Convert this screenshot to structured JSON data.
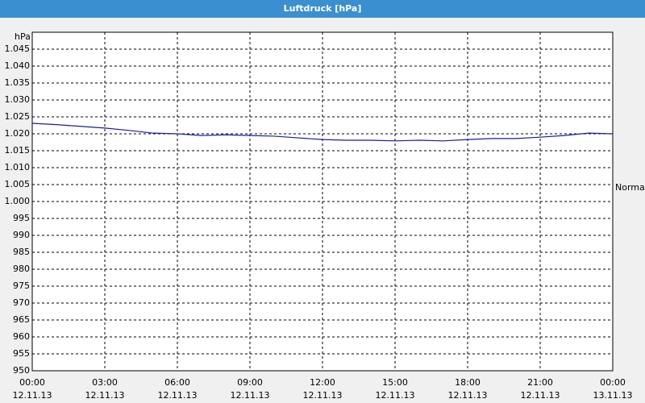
{
  "chart_data": {
    "type": "line",
    "title": "Luftdruck [hPa]",
    "y_label": "hPa",
    "x": [
      0,
      1,
      2,
      3,
      4,
      5,
      6,
      7,
      8,
      9,
      10,
      11,
      12,
      13,
      14,
      15,
      16,
      17,
      18,
      19,
      20,
      21,
      22,
      23,
      24
    ],
    "series": [
      {
        "name": "Luftdruck",
        "color": "#1c1c9c",
        "values": [
          1023.1,
          1022.7,
          1022.2,
          1021.7,
          1021.0,
          1020.2,
          1020.0,
          1019.5,
          1019.7,
          1019.5,
          1019.3,
          1018.8,
          1018.3,
          1018.1,
          1018.1,
          1017.9,
          1018.1,
          1017.9,
          1018.3,
          1018.6,
          1018.6,
          1019.0,
          1019.5,
          1020.2,
          1020.0
        ]
      }
    ],
    "xlim": [
      0,
      24
    ],
    "xticks": [
      {
        "value": 0,
        "label": "00:00"
      },
      {
        "value": 3,
        "label": "03:00"
      },
      {
        "value": 6,
        "label": "06:00"
      },
      {
        "value": 9,
        "label": "09:00"
      },
      {
        "value": 12,
        "label": "12:00"
      },
      {
        "value": 15,
        "label": "15:00"
      },
      {
        "value": 18,
        "label": "18:00"
      },
      {
        "value": 21,
        "label": "21:00"
      },
      {
        "value": 24,
        "label": "00:00"
      }
    ],
    "xtick_dates": [
      "12.11.13",
      "12.11.13",
      "12.11.13",
      "12.11.13",
      "12.11.13",
      "12.11.13",
      "12.11.13",
      "12.11.13",
      "13.11.13"
    ],
    "ylim": [
      950,
      1050
    ],
    "yticks": [
      950,
      955,
      960,
      965,
      970,
      975,
      980,
      985,
      990,
      995,
      {
        "value": 1000,
        "label": "1.000"
      },
      {
        "value": 1005,
        "label": "1.005"
      },
      {
        "value": 1010,
        "label": "1.010"
      },
      {
        "value": 1015,
        "label": "1.015"
      },
      {
        "value": 1020,
        "label": "1.020"
      },
      {
        "value": 1025,
        "label": "1.025"
      },
      {
        "value": 1030,
        "label": "1.030"
      },
      {
        "value": 1035,
        "label": "1.035"
      },
      {
        "value": 1040,
        "label": "1.040"
      },
      {
        "value": 1045,
        "label": "1.045"
      }
    ],
    "grid": true,
    "normal": {
      "label": "Normal",
      "value": 1004
    }
  }
}
